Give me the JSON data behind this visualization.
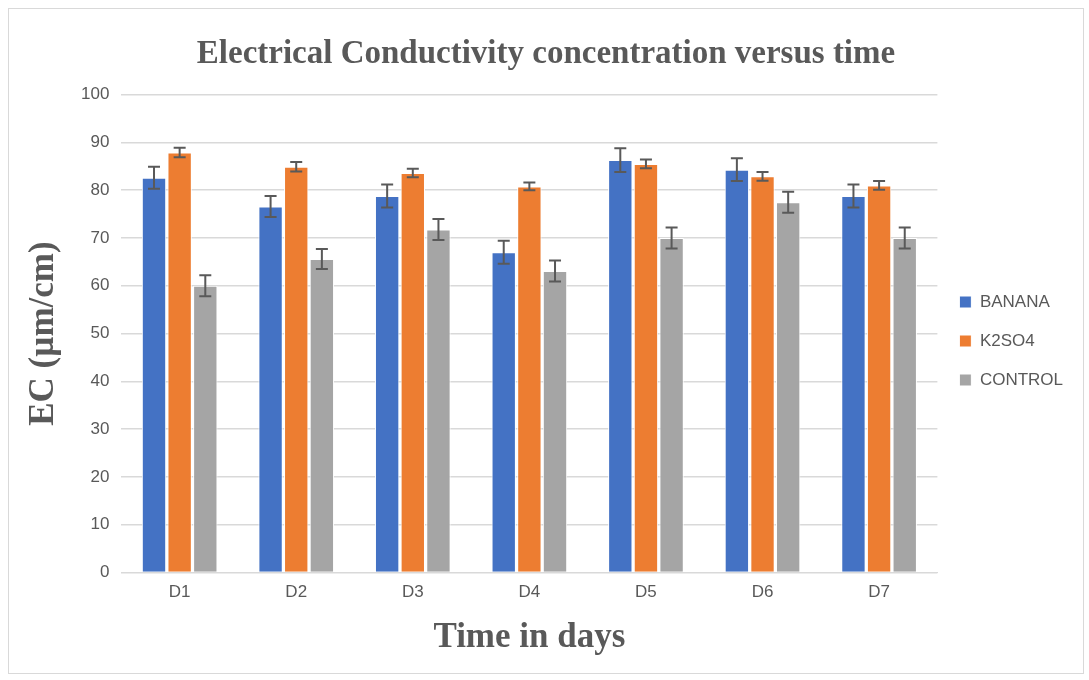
{
  "chart_data": {
    "type": "bar",
    "title": "Electrical Conductivity concentration versus time",
    "xlabel": "Time in days",
    "ylabel": "EC (µm/cm)",
    "categories": [
      "D1",
      "D2",
      "D3",
      "D4",
      "D5",
      "D6",
      "D7"
    ],
    "series": [
      {
        "name": "BANANA",
        "color": "#4472c4",
        "values": [
          82.6,
          76.6,
          78.8,
          67,
          86.3,
          84.3,
          78.8
        ],
        "errors": [
          2.3,
          2.2,
          2.4,
          2.4,
          2.5,
          2.4,
          2.4
        ]
      },
      {
        "name": "K2SO4",
        "color": "#ed7d31",
        "values": [
          87.9,
          84.9,
          83.6,
          80.8,
          85.5,
          82.9,
          81
        ],
        "errors": [
          1,
          1,
          0.9,
          0.8,
          0.9,
          0.9,
          0.9
        ]
      },
      {
        "name": "CONTROL",
        "color": "#a5a5a5",
        "values": [
          60,
          65.6,
          71.8,
          63.1,
          70,
          77.5,
          70
        ],
        "errors": [
          2.2,
          2.1,
          2.2,
          2.2,
          2.2,
          2.2,
          2.2
        ]
      }
    ],
    "ylim": [
      0,
      100
    ],
    "yticks": [
      0,
      10,
      20,
      30,
      40,
      50,
      60,
      70,
      80,
      90,
      100
    ],
    "grid": "y",
    "legend": "right"
  }
}
